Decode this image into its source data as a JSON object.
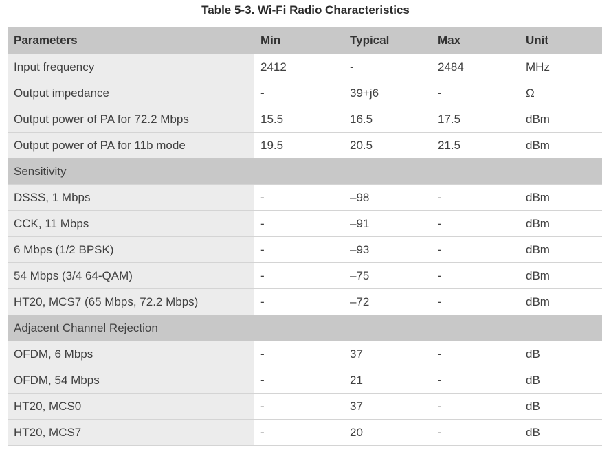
{
  "caption": "Table 5-3. Wi-Fi Radio Characteristics",
  "columns": {
    "parameters": "Parameters",
    "min": "Min",
    "typical": "Typical",
    "max": "Max",
    "unit": "Unit"
  },
  "rows": [
    {
      "param": "Input frequency",
      "min": "2412",
      "typical": "-",
      "max": "2484",
      "unit": "MHz"
    },
    {
      "param": "Output impedance",
      "min": "-",
      "typical": "39+j6",
      "max": "-",
      "unit": "Ω"
    },
    {
      "param": "Output power of PA for 72.2 Mbps",
      "min": "15.5",
      "typical": "16.5",
      "max": "17.5",
      "unit": "dBm"
    },
    {
      "param": "Output power of PA for 11b mode",
      "min": "19.5",
      "typical": "20.5",
      "max": "21.5",
      "unit": "dBm"
    }
  ],
  "sensitivity": {
    "title": "Sensitivity",
    "rows": [
      {
        "param": "DSSS, 1 Mbps",
        "min": "-",
        "typical": "–98",
        "max": "-",
        "unit": "dBm"
      },
      {
        "param": "CCK, 11 Mbps",
        "min": "-",
        "typical": "–91",
        "max": "-",
        "unit": "dBm"
      },
      {
        "param": "6 Mbps (1/2 BPSK)",
        "min": "-",
        "typical": "–93",
        "max": "-",
        "unit": "dBm"
      },
      {
        "param": "54 Mbps (3/4 64-QAM)",
        "min": "-",
        "typical": "–75",
        "max": "-",
        "unit": "dBm"
      },
      {
        "param": "HT20, MCS7 (65 Mbps, 72.2 Mbps)",
        "min": "-",
        "typical": "–72",
        "max": "-",
        "unit": "dBm"
      }
    ]
  },
  "adjacent": {
    "title": "Adjacent Channel Rejection",
    "rows": [
      {
        "param": "OFDM, 6 Mbps",
        "min": "-",
        "typical": "37",
        "max": "-",
        "unit": "dB"
      },
      {
        "param": "OFDM, 54 Mbps",
        "min": "-",
        "typical": "21",
        "max": "-",
        "unit": "dB"
      },
      {
        "param": "HT20, MCS0",
        "min": "-",
        "typical": "37",
        "max": "-",
        "unit": "dB"
      },
      {
        "param": "HT20, MCS7",
        "min": "-",
        "typical": "20",
        "max": "-",
        "unit": "dB"
      }
    ]
  }
}
